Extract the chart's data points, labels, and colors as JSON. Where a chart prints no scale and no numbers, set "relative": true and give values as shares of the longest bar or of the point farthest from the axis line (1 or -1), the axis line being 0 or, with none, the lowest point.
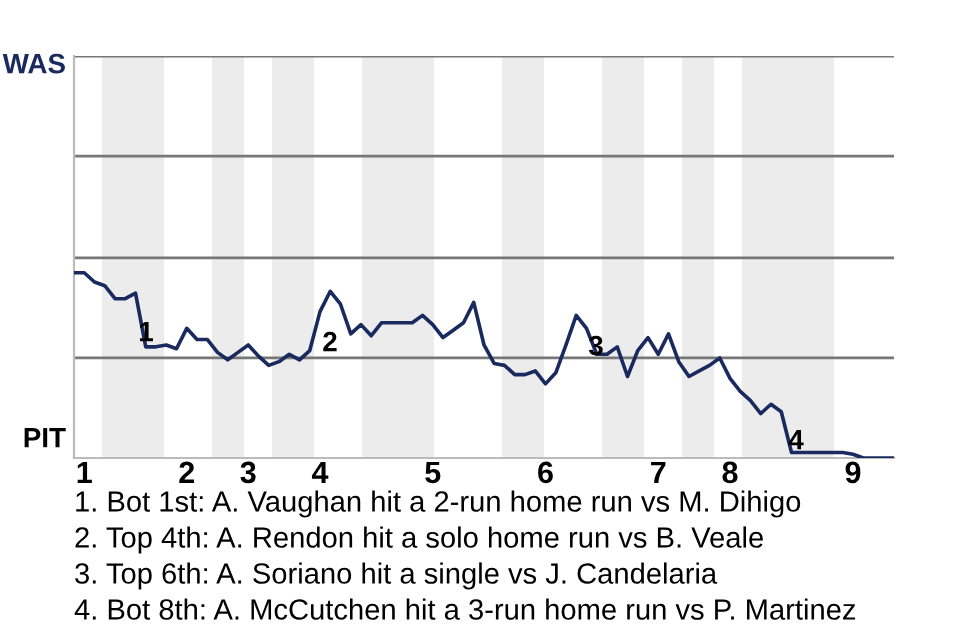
{
  "chart_data": {
    "type": "line",
    "relative": true,
    "categories": [
      null,
      "1",
      null,
      null,
      null,
      null,
      null,
      null,
      null,
      null,
      null,
      "2",
      null,
      null,
      null,
      null,
      null,
      "3",
      null,
      null,
      null,
      null,
      null,
      null,
      "4",
      null,
      null,
      null,
      null,
      null,
      null,
      null,
      null,
      null,
      null,
      "5",
      null,
      null,
      null,
      null,
      null,
      null,
      null,
      null,
      null,
      null,
      "6",
      null,
      null,
      null,
      null,
      null,
      null,
      null,
      null,
      null,
      null,
      "7",
      null,
      null,
      null,
      null,
      null,
      null,
      "8",
      null,
      null,
      null,
      null,
      null,
      null,
      null,
      null,
      null,
      null,
      null,
      "9",
      null,
      null,
      null,
      null
    ],
    "marker": "none",
    "line_style": "solid",
    "ref_lines": [
      {
        "axis": "y",
        "value": 0.54,
        "color": "#777777"
      },
      {
        "axis": "y",
        "value": 1.08,
        "color": "#777777"
      },
      {
        "axis": "y",
        "value": 1.63,
        "color": "#777777"
      },
      {
        "axis": "y",
        "value": 2.17,
        "color": "#777777"
      }
    ],
    "series": [
      {
        "color": "#1b2a5e",
        "values": [
          1.0,
          1.0,
          0.95,
          0.93,
          0.86,
          0.86,
          0.89,
          0.6,
          0.6,
          0.61,
          0.59,
          0.7,
          0.64,
          0.64,
          0.57,
          0.53,
          0.57,
          0.61,
          0.55,
          0.5,
          0.52,
          0.56,
          0.53,
          0.58,
          0.79,
          0.9,
          0.83,
          0.67,
          0.72,
          0.66,
          0.73,
          0.73,
          0.73,
          0.73,
          0.77,
          0.72,
          0.65,
          0.69,
          0.73,
          0.84,
          0.61,
          0.51,
          0.5,
          0.45,
          0.45,
          0.47,
          0.4,
          0.46,
          0.61,
          0.77,
          0.7,
          0.56,
          0.56,
          0.6,
          0.44,
          0.58,
          0.65,
          0.56,
          0.67,
          0.52,
          0.44,
          0.47,
          0.5,
          0.54,
          0.43,
          0.36,
          0.31,
          0.24,
          0.29,
          0.25,
          0.03,
          0.03,
          0.03,
          0.03,
          0.03,
          0.03,
          0.02,
          0,
          0,
          0,
          0
        ]
      }
    ],
    "annotations": [
      "WAS",
      "PIT",
      "1",
      "2",
      "3",
      "4",
      "1. Bot 1st: A. Vaughan hit a 2-run home run vs M. Dihigo",
      "2. Top 4th: A. Rendon hit a solo home run vs B. Veale",
      "3. Top 6th: A. Soriano hit a single vs J. Candelaria",
      "4. Bot 8th: A. McCutchen hit a 3-run home run vs P. Martinez"
    ]
  }
}
